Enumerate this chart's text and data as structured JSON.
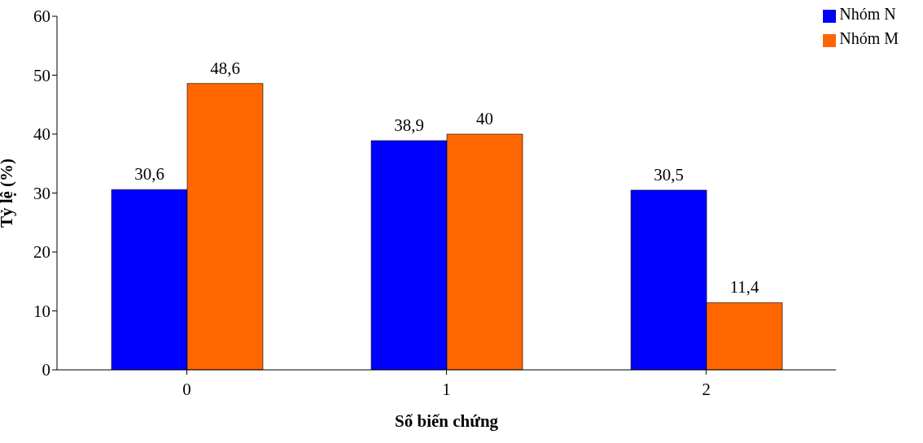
{
  "chart_data": {
    "type": "bar",
    "xlabel": "Số biến chứng",
    "ylabel": "Tỷ lệ (%)",
    "categories": [
      "0",
      "1",
      "2"
    ],
    "series": [
      {
        "name": "Nhóm N",
        "color": "#0000ff",
        "values": [
          30.6,
          38.9,
          30.5
        ],
        "value_labels": [
          "30,6",
          "38,9",
          "30,5"
        ]
      },
      {
        "name": "Nhóm M",
        "color": "#ff6600",
        "values": [
          48.6,
          40,
          11.4
        ],
        "value_labels": [
          "48,6",
          "40",
          "11,4"
        ]
      }
    ],
    "ylim": [
      0,
      60
    ],
    "yticks": [
      0,
      10,
      20,
      30,
      40,
      50,
      60
    ],
    "grid": false,
    "legend": "top right"
  }
}
